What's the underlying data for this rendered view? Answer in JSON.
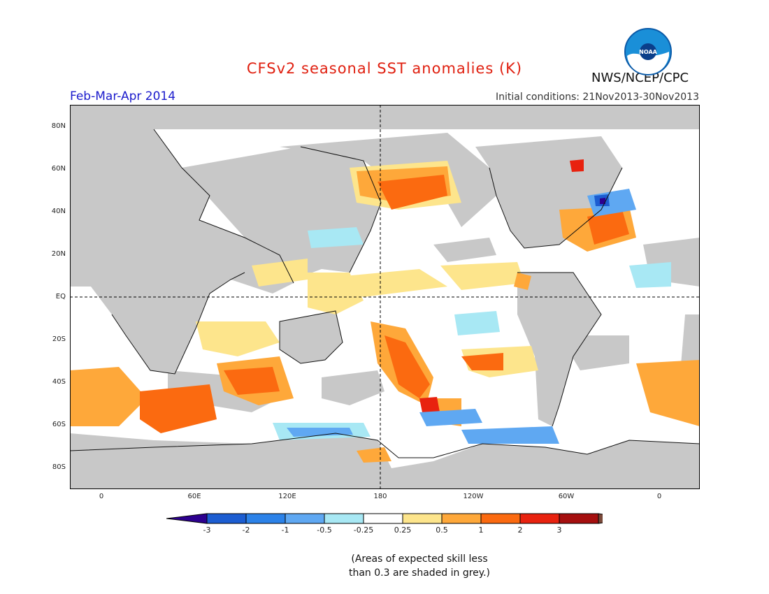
{
  "title": "CFSv2 seasonal SST anomalies (K)",
  "period": "Feb-Mar-Apr 2014",
  "initial_conditions": "Initial conditions: 21Nov2013-30Nov2013",
  "agency": "NWS/NCEP/CPC",
  "logo_text": "NOAA",
  "lat_labels": [
    "80N",
    "60N",
    "40N",
    "20N",
    "EQ",
    "20S",
    "40S",
    "60S",
    "80S"
  ],
  "lon_labels": [
    "0",
    "60E",
    "120E",
    "180",
    "120W",
    "60W",
    "0"
  ],
  "colorbar": {
    "ticks": [
      "-3",
      "-2",
      "-1",
      "-0.5",
      "-0.25",
      "0.25",
      "0.5",
      "1",
      "2",
      "3"
    ],
    "colors": [
      "#2d008f",
      "#1c5dd1",
      "#2c82e8",
      "#5fa8f2",
      "#a8e8f4",
      "#ffffff",
      "#fde58c",
      "#fea83a",
      "#fb6a10",
      "#e8220f",
      "#a50f0f",
      "#7a4a3a"
    ],
    "grey": "#c8c8c8"
  },
  "note": "(Areas of expected skill less than 0.3 are shaded in grey.)",
  "note_lines": [
    "(Areas of expected skill less",
    "than 0.3 are shaded in grey.)"
  ]
}
